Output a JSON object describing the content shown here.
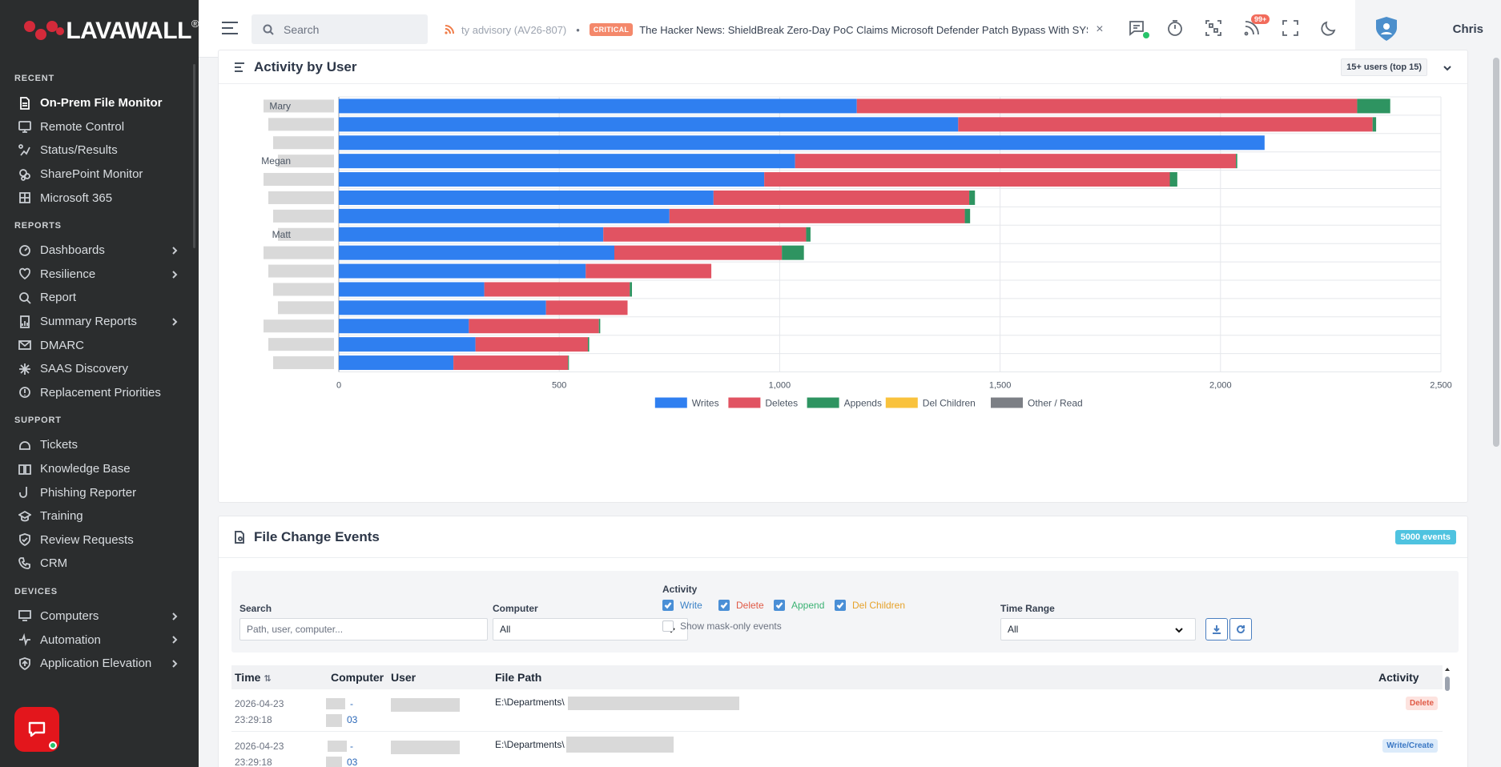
{
  "app": {
    "brand": "LAVAWALL",
    "brand_mark": "®"
  },
  "topbar": {
    "search_placeholder": "Search",
    "ticker_prev": "ty advisory (AV26-807)",
    "ticker_sep": "•",
    "ticker_badge": "CRITICAL",
    "ticker_headline": "The Hacker News: ShieldBreak Zero-Day PoC Claims Microsoft Defender Patch Bypass With SYSTEM...",
    "ticker_close": "×",
    "notif_count": "99+",
    "user_name": "Chris"
  },
  "sidebar": {
    "recent_title": "RECENT",
    "recent": [
      {
        "label": "On-Prem File Monitor",
        "icon": "file-monitor-icon",
        "active": true
      },
      {
        "label": "Remote Control",
        "icon": "remote-control-icon"
      },
      {
        "label": "Status/Results",
        "icon": "status-icon"
      },
      {
        "label": "SharePoint Monitor",
        "icon": "sharepoint-icon"
      },
      {
        "label": "Microsoft 365",
        "icon": "microsoft-icon"
      }
    ],
    "reports_title": "REPORTS",
    "reports": [
      {
        "label": "Dashboards",
        "icon": "dashboard-icon",
        "expandable": true
      },
      {
        "label": "Resilience",
        "icon": "heart-icon",
        "expandable": true
      },
      {
        "label": "Report",
        "icon": "report-icon"
      },
      {
        "label": "Summary Reports",
        "icon": "summary-icon",
        "expandable": true
      },
      {
        "label": "DMARC",
        "icon": "mail-icon"
      },
      {
        "label": "SAAS Discovery",
        "icon": "sparkle-icon"
      },
      {
        "label": "Replacement Priorities",
        "icon": "priority-icon"
      }
    ],
    "support_title": "SUPPORT",
    "support": [
      {
        "label": "Tickets",
        "icon": "tickets-icon"
      },
      {
        "label": "Knowledge Base",
        "icon": "book-icon"
      },
      {
        "label": "Phishing Reporter",
        "icon": "hook-icon"
      },
      {
        "label": "Training",
        "icon": "graduation-icon"
      },
      {
        "label": "Review Requests",
        "icon": "shield-check-icon"
      },
      {
        "label": "CRM",
        "icon": "phone-icon"
      }
    ],
    "devices_title": "DEVICES",
    "devices": [
      {
        "label": "Computers",
        "icon": "computer-icon",
        "expandable": true
      },
      {
        "label": "Automation",
        "icon": "automation-icon",
        "expandable": true
      },
      {
        "label": "Application Elevation",
        "icon": "elevation-icon",
        "expandable": true
      }
    ]
  },
  "activity_card": {
    "title": "Activity by User",
    "users_select": "15+ users (top 15)"
  },
  "chart_data": {
    "type": "bar",
    "orientation": "horizontal",
    "stacked": true,
    "categories": [
      "Mary",
      "",
      "",
      "Megan",
      "",
      "",
      "",
      "Matt",
      "",
      "",
      "",
      "",
      "",
      "",
      ""
    ],
    "series": [
      {
        "name": "Writes",
        "color": "#2f7ff0",
        "values": [
          1175,
          1405,
          2100,
          1035,
          965,
          850,
          750,
          600,
          625,
          560,
          330,
          470,
          295,
          310,
          260
        ]
      },
      {
        "name": "Deletes",
        "color": "#e15362",
        "values": [
          1135,
          940,
          0,
          1000,
          920,
          580,
          670,
          460,
          380,
          285,
          330,
          185,
          295,
          255,
          260
        ]
      },
      {
        "name": "Appends",
        "color": "#2e9461",
        "values": [
          75,
          8,
          0,
          3,
          17,
          13,
          12,
          10,
          50,
          0,
          5,
          0,
          3,
          3,
          2
        ]
      },
      {
        "name": "Del Children",
        "color": "#f9c23c",
        "values": [
          0,
          0,
          0,
          0,
          0,
          0,
          0,
          0,
          0,
          0,
          0,
          0,
          0,
          0,
          0
        ]
      },
      {
        "name": "Other / Read",
        "color": "#7c7f85",
        "values": [
          0,
          0,
          0,
          0,
          0,
          0,
          0,
          0,
          0,
          0,
          0,
          0,
          0,
          0,
          0
        ]
      }
    ],
    "xlim": [
      0,
      2500
    ],
    "xticks": [
      "0",
      "500",
      "1,000",
      "1,500",
      "2,000",
      "2,500"
    ],
    "grid": true,
    "legend_position": "bottom"
  },
  "events_card": {
    "title": "File Change Events",
    "count_badge": "5000 events",
    "search_label": "Search",
    "search_placeholder": "Path, user, computer...",
    "computer_label": "Computer",
    "computer_value": "All",
    "activity_label": "Activity",
    "cb_write": "Write",
    "cb_delete": "Delete",
    "cb_append": "Append",
    "cb_delchildren": "Del Children",
    "cb_maskonly": "Show mask-only events",
    "time_range_label": "Time Range",
    "time_range_value": "All",
    "columns": {
      "time": "Time",
      "computer": "Computer",
      "user": "User",
      "path": "File Path",
      "activity": "Activity"
    },
    "rows": [
      {
        "date": "2026-04-23",
        "time": "23:29:18",
        "comp_a": "-",
        "comp_b": "03",
        "path": "E:\\Departments\\",
        "activity": "Delete"
      },
      {
        "date": "2026-04-23",
        "time": "23:29:18",
        "comp_a": "-",
        "comp_b": "03",
        "path": "E:\\Departments\\",
        "activity": "Write/Create"
      }
    ]
  }
}
